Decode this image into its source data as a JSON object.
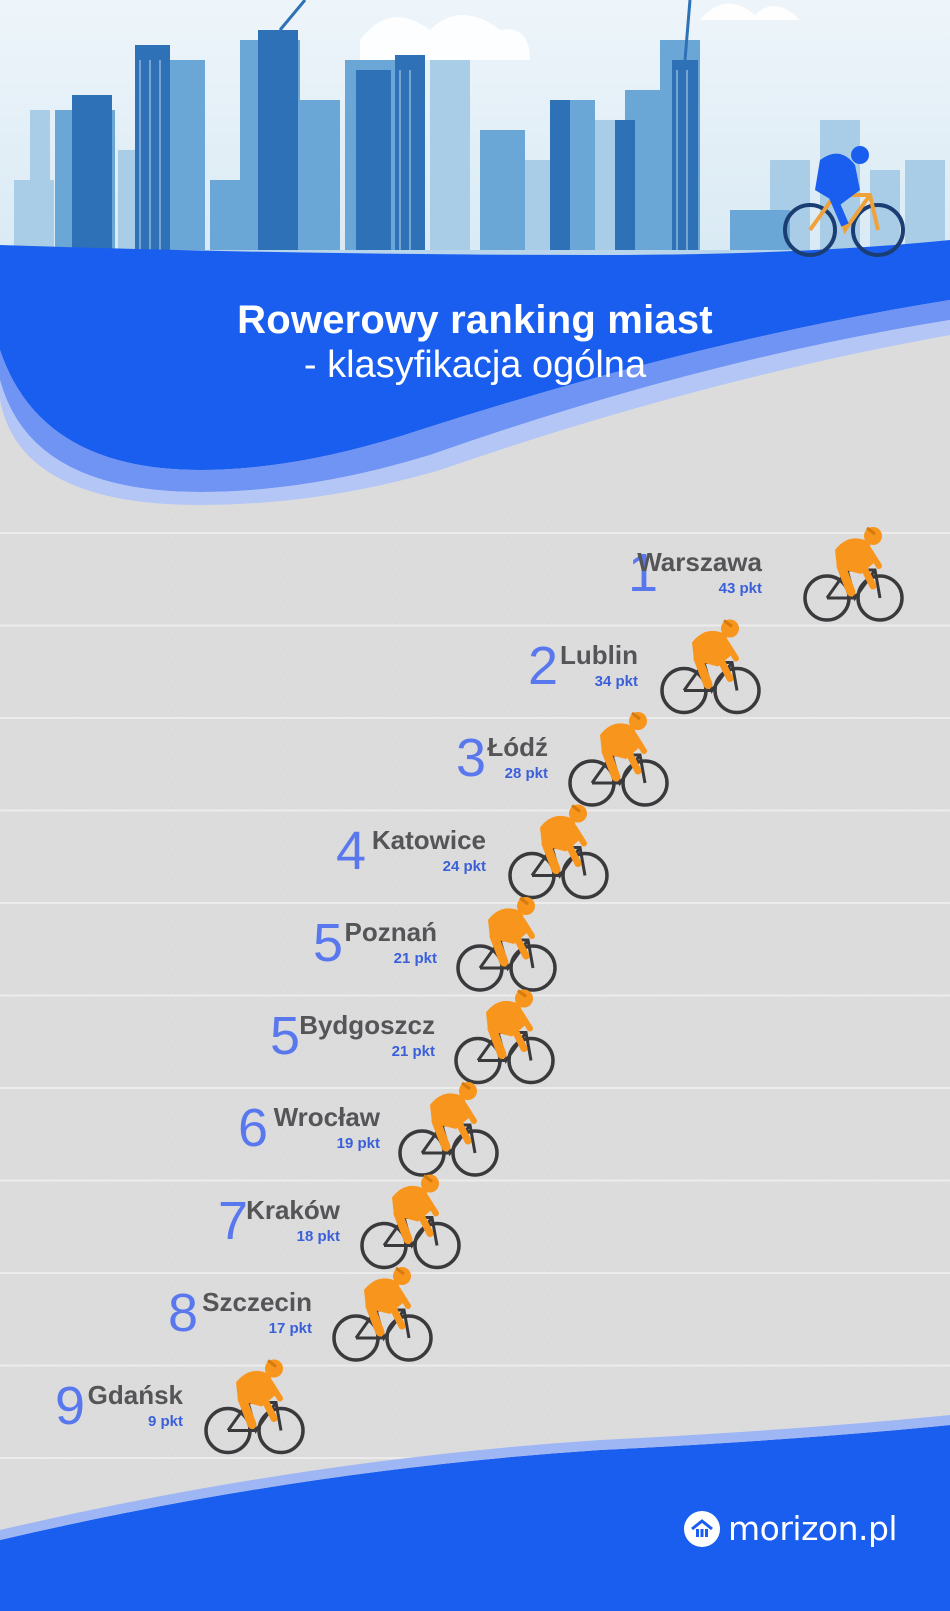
{
  "title": "Rowerowy ranking miast",
  "subtitle": "- klasyfikacja ogólna",
  "brand": "morizon.pl",
  "colors": {
    "accent_blue": "#1a5ef0",
    "rank_blue": "#5a78ee",
    "points_blue": "#3a5fd9",
    "rider_orange": "#f7951d",
    "city_text": "#555558"
  },
  "icons": [
    "cyclist-icon",
    "house-icon",
    "city-skyline"
  ],
  "chart_data": {
    "type": "table",
    "columns": [
      "rank",
      "city",
      "points"
    ],
    "rows": [
      {
        "rank": "1",
        "city": "Warszawa",
        "points": 43,
        "points_label": "43 pkt"
      },
      {
        "rank": "2",
        "city": "Lublin",
        "points": 34,
        "points_label": "34 pkt"
      },
      {
        "rank": "3",
        "city": "Łódź",
        "points": 28,
        "points_label": "28 pkt"
      },
      {
        "rank": "4",
        "city": "Katowice",
        "points": 24,
        "points_label": "24 pkt"
      },
      {
        "rank": "5",
        "city": "Poznań",
        "points": 21,
        "points_label": "21 pkt"
      },
      {
        "rank": "5",
        "city": "Bydgoszcz",
        "points": 21,
        "points_label": "21 pkt"
      },
      {
        "rank": "6",
        "city": "Wrocław",
        "points": 19,
        "points_label": "19 pkt"
      },
      {
        "rank": "7",
        "city": "Kraków",
        "points": 18,
        "points_label": "18 pkt"
      },
      {
        "rank": "8",
        "city": "Szczecin",
        "points": 17,
        "points_label": "17 pkt"
      },
      {
        "rank": "9",
        "city": "Gdańsk",
        "points": 9,
        "points_label": "9 pkt"
      }
    ]
  }
}
